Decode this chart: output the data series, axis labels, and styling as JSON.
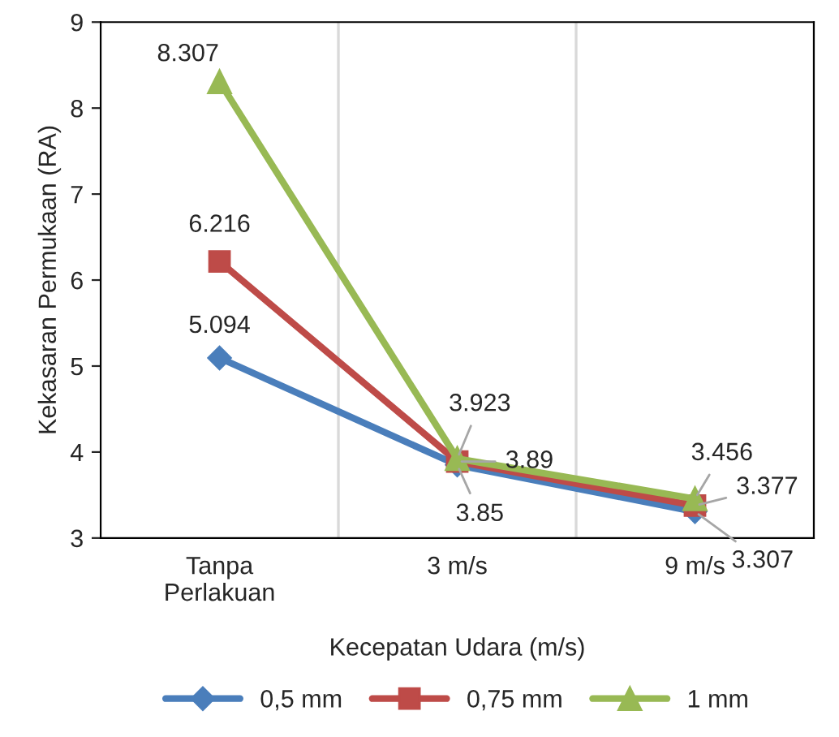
{
  "chart_data": {
    "type": "line",
    "xlabel": "Kecepatan Udara (m/s)",
    "ylabel": "Kekasaran Permukaan (RA)",
    "categories": [
      "Tanpa Perlakuan",
      "3 m/s",
      "9 m/s"
    ],
    "series": [
      {
        "name": "0,5 mm",
        "color": "#4a7ebb",
        "marker": "diamond",
        "values": [
          5.094,
          3.85,
          3.307
        ]
      },
      {
        "name": "0,75 mm",
        "color": "#be4b48",
        "marker": "square",
        "values": [
          6.216,
          3.89,
          3.377
        ]
      },
      {
        "name": "1 mm",
        "color": "#98b954",
        "marker": "triangle",
        "values": [
          8.307,
          3.923,
          3.456
        ]
      }
    ],
    "ylim": [
      3,
      9
    ],
    "yticks": [
      3,
      4,
      5,
      6,
      7,
      8,
      9
    ],
    "grid": "x",
    "legend": "bottom",
    "data_labels": true
  }
}
